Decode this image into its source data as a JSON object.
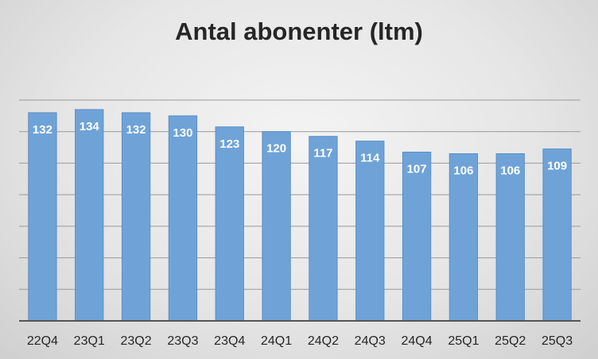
{
  "chart_data": {
    "type": "bar",
    "title": "Antal abonenter (ltm)",
    "xlabel": "",
    "ylabel": "",
    "categories": [
      "22Q4",
      "23Q1",
      "23Q2",
      "23Q3",
      "23Q4",
      "24Q1",
      "24Q2",
      "24Q3",
      "24Q4",
      "25Q1",
      "25Q2",
      "25Q3"
    ],
    "values": [
      132,
      134,
      132,
      130,
      123,
      120,
      117,
      114,
      107,
      106,
      106,
      109
    ],
    "ylim": [
      0,
      140
    ],
    "grid": true,
    "legend": "none",
    "data_labels": true,
    "colors": {
      "bar": "#6fa3d8",
      "bar_edge": "#5b8fc6",
      "grid": "#9a9a9a",
      "axis": "#555555",
      "label_text": "#ffffff",
      "tick_text": "#262626"
    }
  }
}
